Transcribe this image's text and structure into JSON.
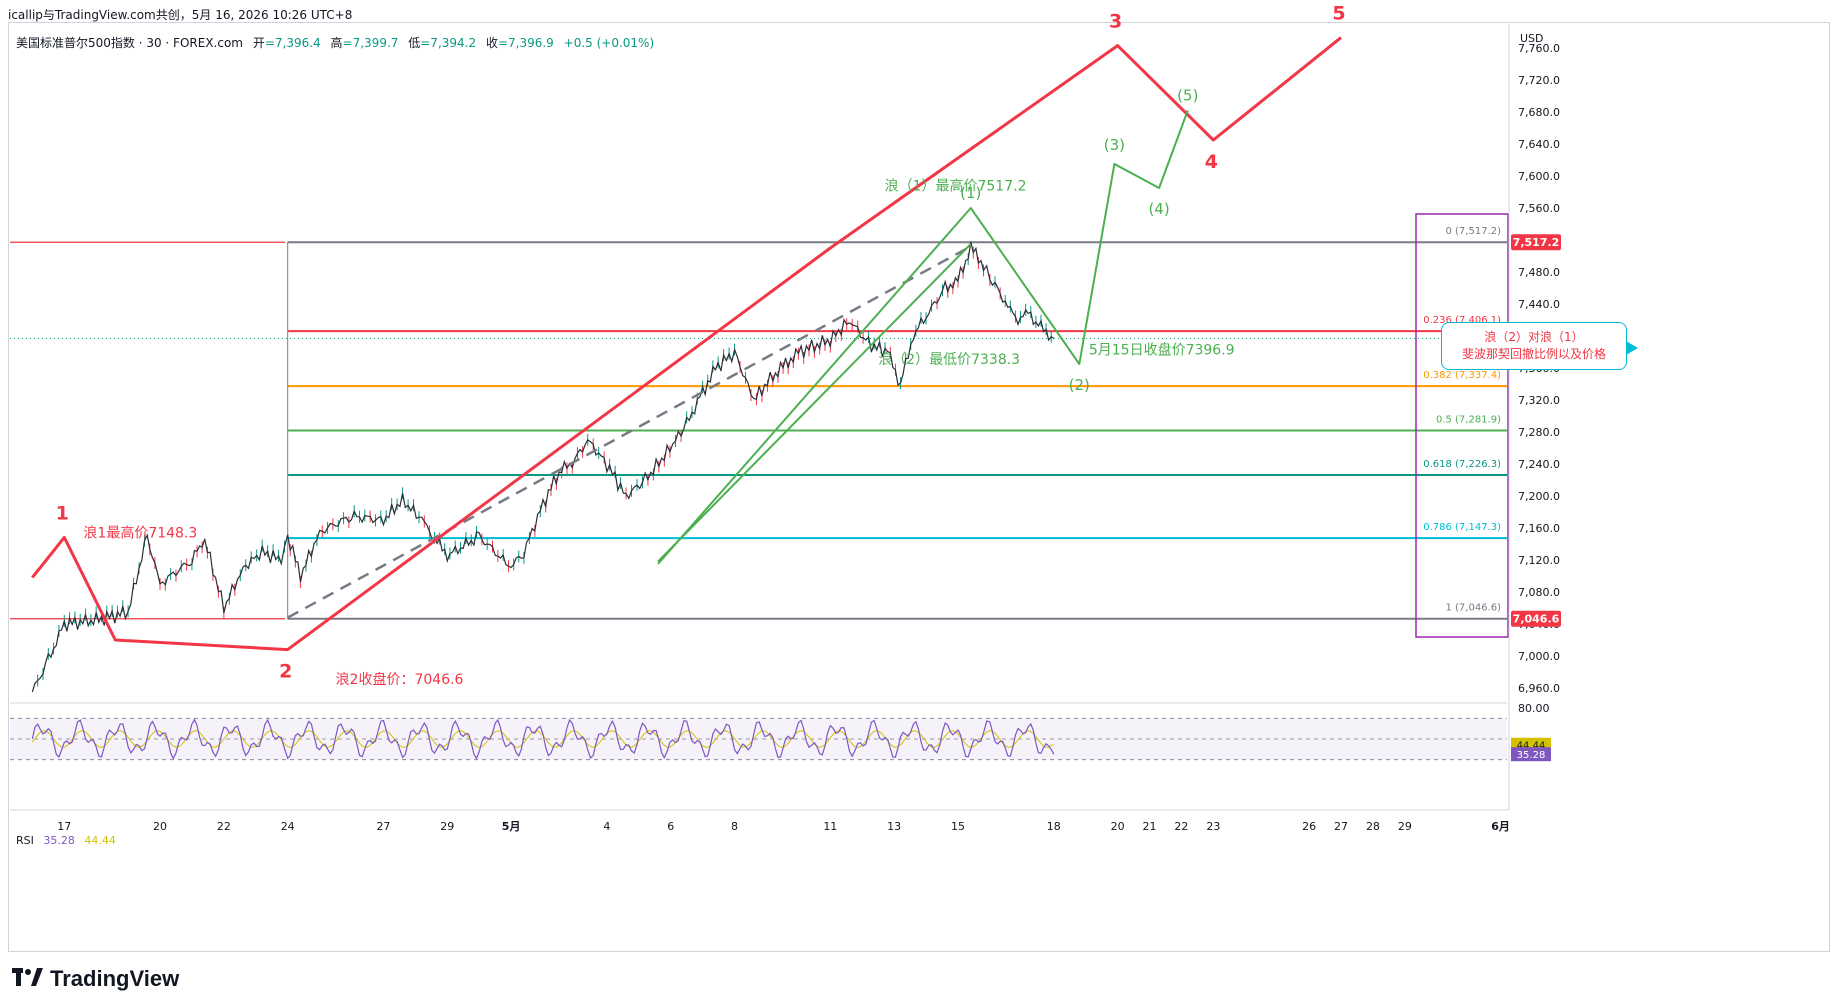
{
  "header": {
    "attribution": "icallip与TradingView.com共创，5月 16, 2026 10:26 UTC+8",
    "symbol": "美国标准普尔500指数 · 30 · FOREX.com",
    "ohlc": [
      {
        "label": "开",
        "value": "=7,396.4"
      },
      {
        "label": "高",
        "value": "=7,399.7"
      },
      {
        "label": "低",
        "value": "=7,394.2"
      },
      {
        "label": "收",
        "value": "=7,396.9"
      }
    ],
    "change": "+0.5 (+0.01%)"
  },
  "rsi_legend": {
    "label": "RSI",
    "value1": "35.28",
    "value2": "44.44"
  },
  "logo": {
    "text": "TradingView",
    "icon": "tradingview-logo-icon"
  },
  "callout": {
    "line1": "浪（2）对浪（1）",
    "line2": "斐波那契回撤比例以及价格"
  },
  "colors": {
    "red": "#f23645",
    "green": "#4caf50",
    "grey": "#787b86",
    "orange": "#ff9800",
    "teal": "#089981",
    "cyan": "#00bcd4",
    "purple": "#9c27b0",
    "rsi": "#7e57c2",
    "rsi_ma": "#d4c200"
  },
  "chart_data": {
    "type": "line",
    "currency": "USD",
    "y_ticks": [
      "7,760.0",
      "7,720.0",
      "7,680.0",
      "7,640.0",
      "7,600.0",
      "7,560.0",
      "7,520.0",
      "7,480.0",
      "7,440.0",
      "7,400.0",
      "7,360.0",
      "7,320.0",
      "7,280.0",
      "7,240.0",
      "7,200.0",
      "7,160.0",
      "7,120.0",
      "7,080.0",
      "7,040.0",
      "7,000.0",
      "6,960.0"
    ],
    "ylim": [
      6945,
      7790
    ],
    "x_ticks": [
      {
        "label": "17",
        "day": 1
      },
      {
        "label": "20",
        "day": 4
      },
      {
        "label": "22",
        "day": 6
      },
      {
        "label": "24",
        "day": 8
      },
      {
        "label": "27",
        "day": 11
      },
      {
        "label": "29",
        "day": 13
      },
      {
        "label": "5月",
        "day": 15
      },
      {
        "label": "4",
        "day": 18
      },
      {
        "label": "6",
        "day": 20
      },
      {
        "label": "8",
        "day": 22
      },
      {
        "label": "11",
        "day": 25
      },
      {
        "label": "13",
        "day": 27
      },
      {
        "label": "15",
        "day": 29
      },
      {
        "label": "18",
        "day": 32
      },
      {
        "label": "20",
        "day": 34
      },
      {
        "label": "21",
        "day": 35
      },
      {
        "label": "22",
        "day": 36
      },
      {
        "label": "23",
        "day": 37
      },
      {
        "label": "26",
        "day": 40
      },
      {
        "label": "27",
        "day": 41
      },
      {
        "label": "28",
        "day": 42
      },
      {
        "label": "29",
        "day": 43
      },
      {
        "label": "6月",
        "day": 46
      }
    ],
    "price_path": [
      [
        0,
        6955
      ],
      [
        0.5,
        6995
      ],
      [
        1,
        7040
      ],
      [
        2,
        7045
      ],
      [
        3,
        7055
      ],
      [
        3.6,
        7150
      ],
      [
        4,
        7090
      ],
      [
        5,
        7120
      ],
      [
        5.4,
        7145
      ],
      [
        6,
        7060
      ],
      [
        6.6,
        7110
      ],
      [
        7.2,
        7130
      ],
      [
        7.8,
        7120
      ],
      [
        8,
        7150
      ],
      [
        8.4,
        7100
      ],
      [
        9,
        7155
      ],
      [
        10,
        7175
      ],
      [
        11,
        7170
      ],
      [
        11.6,
        7195
      ],
      [
        12.2,
        7170
      ],
      [
        13,
        7125
      ],
      [
        14,
        7150
      ],
      [
        15,
        7110
      ],
      [
        15.4,
        7130
      ],
      [
        16,
        7190
      ],
      [
        16.5,
        7230
      ],
      [
        17,
        7245
      ],
      [
        17.4,
        7270
      ],
      [
        18,
        7240
      ],
      [
        18.6,
        7200
      ],
      [
        19.2,
        7220
      ],
      [
        19.8,
        7250
      ],
      [
        20.5,
        7290
      ],
      [
        21,
        7330
      ],
      [
        21.4,
        7360
      ],
      [
        22,
        7380
      ],
      [
        22.6,
        7320
      ],
      [
        23.2,
        7350
      ],
      [
        24,
        7380
      ],
      [
        25,
        7395
      ],
      [
        25.6,
        7420
      ],
      [
        26.2,
        7390
      ],
      [
        26.8,
        7380
      ],
      [
        27.2,
        7340
      ],
      [
        27.6,
        7400
      ],
      [
        28,
        7425
      ],
      [
        28.6,
        7460
      ],
      [
        29,
        7470
      ],
      [
        29.4,
        7510
      ],
      [
        29.8,
        7490
      ],
      [
        30,
        7470
      ],
      [
        30.4,
        7450
      ],
      [
        30.8,
        7420
      ],
      [
        31.2,
        7430
      ],
      [
        31.6,
        7410
      ],
      [
        32,
        7397
      ]
    ],
    "red_wave": {
      "points": [
        [
          0,
          7098
        ],
        [
          1,
          7148.3
        ],
        [
          2.6,
          7020
        ],
        [
          8,
          7008
        ],
        [
          25,
          7510
        ],
        [
          34,
          7763
        ],
        [
          37,
          7645
        ],
        [
          41,
          7773
        ]
      ],
      "labels": [
        "1",
        "2",
        "3",
        "4",
        "5"
      ]
    },
    "green_wave": {
      "points": [
        [
          19.6,
          7115
        ],
        [
          29.4,
          7560
        ],
        [
          32.8,
          7365
        ],
        [
          33.9,
          7615
        ],
        [
          35.3,
          7585
        ],
        [
          36.2,
          7682
        ]
      ],
      "labels": [
        "(1)",
        "(2)",
        "(3)",
        "(4)",
        "(5)"
      ]
    },
    "grey_dashed_trend": [
      [
        8,
        7048
      ],
      [
        29.4,
        7512
      ]
    ],
    "green_channel": [
      [
        19.6,
        7118
      ],
      [
        29.4,
        7515
      ]
    ],
    "fib_levels": [
      {
        "ratio": "0",
        "price": "7,517.2",
        "value": 7517.2,
        "color": "#787b86"
      },
      {
        "ratio": "0.236",
        "price": "7,406.1",
        "value": 7406.1,
        "color": "#f23645"
      },
      {
        "ratio": "0.382",
        "price": "7,337.4",
        "value": 7337.4,
        "color": "#ff9800"
      },
      {
        "ratio": "0.5",
        "price": "7,281.9",
        "value": 7281.9,
        "color": "#4caf50"
      },
      {
        "ratio": "0.618",
        "price": "7,226.3",
        "value": 7226.3,
        "color": "#089981"
      },
      {
        "ratio": "0.786",
        "price": "7,147.3",
        "value": 7147.3,
        "color": "#00bcd4"
      },
      {
        "ratio": "1",
        "price": "7,046.6",
        "value": 7046.6,
        "color": "#787b86"
      }
    ],
    "price_badges": [
      {
        "label": "7,517.2",
        "value": 7517.2,
        "color": "#f23645"
      },
      {
        "label": "7,396.9",
        "value": 7396.9,
        "color": "#089981"
      },
      {
        "label": "7,046.6",
        "value": 7046.6,
        "color": "#f23645"
      }
    ],
    "horizontal_lines": [
      {
        "value": 7517.2,
        "color": "#f23645"
      },
      {
        "value": 7046.6,
        "color": "#f23645"
      }
    ],
    "annotations": [
      {
        "text": "浪1最高价7148.3",
        "day": 1.6,
        "value": 7148.3,
        "color": "#f23645"
      },
      {
        "text": "浪2收盘价：7046.6",
        "day": 9.5,
        "value": 6965,
        "color": "#f23645"
      },
      {
        "text": "浪（1）最高价7517.2",
        "day": 26.7,
        "value": 7582,
        "color": "#4caf50"
      },
      {
        "text": "浪（2）最低价7338.3",
        "day": 26.5,
        "value": 7365,
        "color": "#4caf50"
      },
      {
        "text": "5月15日收盘价7396.9",
        "day": 33.1,
        "value": 7377,
        "color": "#4caf50"
      }
    ],
    "rsi": {
      "ticks": [
        "80.00"
      ],
      "upper": 70,
      "lower": 30,
      "current": 35.28,
      "ma": 44.44
    }
  }
}
